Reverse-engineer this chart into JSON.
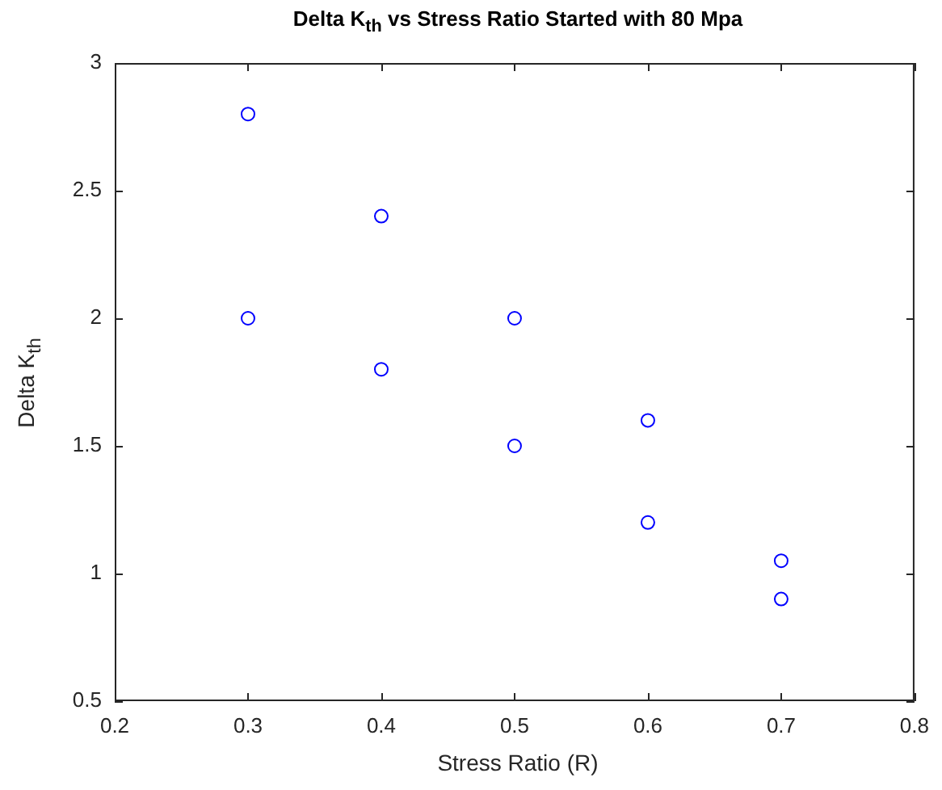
{
  "chart_data": {
    "type": "scatter",
    "title": "Delta K$_{th}$ vs Stress Ratio Started with 80 Mpa",
    "xlabel": "Stress Ratio (R)",
    "ylabel": "Delta K$_{th}$",
    "x": [
      0.3,
      0.3,
      0.4,
      0.4,
      0.5,
      0.5,
      0.6,
      0.6,
      0.7,
      0.7
    ],
    "values": [
      2.8,
      2.0,
      2.4,
      1.8,
      2.0,
      1.5,
      1.6,
      1.2,
      1.05,
      0.9
    ],
    "color": "#0000ff",
    "marker": "circle",
    "grid": false,
    "legend": false,
    "xlim": [
      0.2,
      0.8
    ],
    "xticks": [
      0.2,
      0.3,
      0.4,
      0.5,
      0.6,
      0.7,
      0.8
    ],
    "ylim": [
      0.5,
      3
    ],
    "yticks": [
      0.5,
      1,
      1.5,
      2,
      2.5,
      3
    ]
  }
}
